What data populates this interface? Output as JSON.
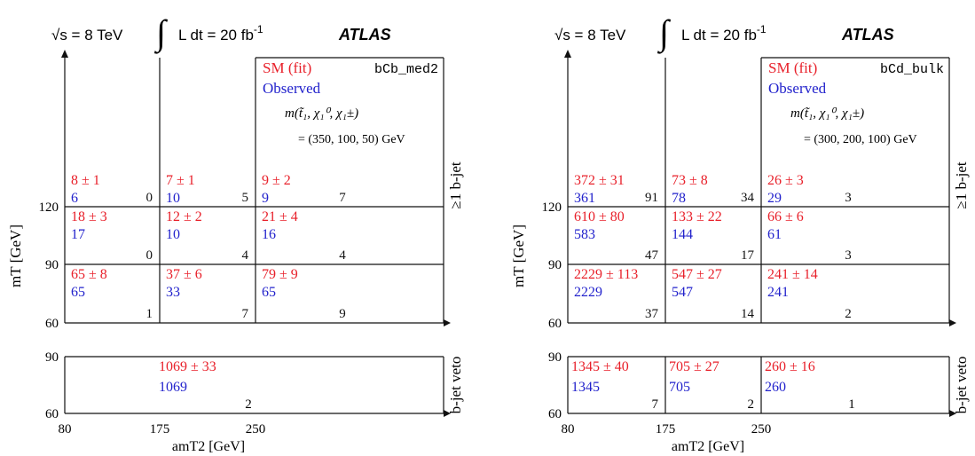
{
  "colors": {
    "fit": "#e8202a",
    "observed": "#2222cc",
    "ink": "#111111"
  },
  "header": {
    "energy_label": "√s = 8 TeV",
    "lumi_prefix": "L dt = 20 fb",
    "lumi_exp": "-1",
    "experiment": "ATLAS"
  },
  "legend": {
    "fit": "SM (fit)",
    "observed": "Observed"
  },
  "mass_label": "m(t̃₁, χ₁⁰, χ₁±)",
  "axes": {
    "y_label": "mT [GeV]",
    "x_label": "amT2 [GeV]",
    "x_ticks": [
      "80",
      "175",
      "250"
    ],
    "top_y_ticks": [
      "120",
      "90",
      "60"
    ],
    "bottom_y_ticks": [
      "90",
      "60"
    ],
    "right_label_top": "≥1 b-jet",
    "right_label_bottom": "b-jet veto"
  },
  "chart_data": [
    {
      "type": "table",
      "signal_region": "bCb_med2",
      "mass_point": "= (350, 100, 50) GeV",
      "x_bins": [
        [
          80,
          175
        ],
        [
          175,
          250
        ],
        [
          250,
          null
        ]
      ],
      "b_jet": {
        "mt_bins": [
          [
            120,
            null
          ],
          [
            90,
            120
          ],
          [
            60,
            90
          ]
        ],
        "cells": [
          [
            {
              "fit": "8 ± 1",
              "obs": "6",
              "sig": "0"
            },
            {
              "fit": "7 ± 1",
              "obs": "10",
              "sig": "5"
            },
            {
              "fit": "9 ± 2",
              "obs": "9",
              "sig": "7"
            }
          ],
          [
            {
              "fit": "18 ± 3",
              "obs": "17",
              "sig": "0"
            },
            {
              "fit": "12 ± 2",
              "obs": "10",
              "sig": "4"
            },
            {
              "fit": "21 ± 4",
              "obs": "16",
              "sig": "4"
            }
          ],
          [
            {
              "fit": "65 ± 8",
              "obs": "65",
              "sig": "1"
            },
            {
              "fit": "37 ± 6",
              "obs": "33",
              "sig": "7"
            },
            {
              "fit": "79 ± 9",
              "obs": "65",
              "sig": "9"
            }
          ]
        ]
      },
      "b_veto": {
        "mt_bins": [
          [
            60,
            90
          ]
        ],
        "merged": true,
        "cells": [
          {
            "fit": "1069 ± 33",
            "obs": "1069",
            "sig": "2"
          }
        ]
      }
    },
    {
      "type": "table",
      "signal_region": "bCd_bulk",
      "mass_point": "= (300, 200, 100) GeV",
      "x_bins": [
        [
          80,
          175
        ],
        [
          175,
          250
        ],
        [
          250,
          null
        ]
      ],
      "b_jet": {
        "mt_bins": [
          [
            120,
            null
          ],
          [
            90,
            120
          ],
          [
            60,
            90
          ]
        ],
        "cells": [
          [
            {
              "fit": "372 ± 31",
              "obs": "361",
              "sig": "91"
            },
            {
              "fit": "73 ± 8",
              "obs": "78",
              "sig": "34"
            },
            {
              "fit": "26 ± 3",
              "obs": "29",
              "sig": "3"
            }
          ],
          [
            {
              "fit": "610 ± 80",
              "obs": "583",
              "sig": "47"
            },
            {
              "fit": "133 ± 22",
              "obs": "144",
              "sig": "17"
            },
            {
              "fit": "66 ± 6",
              "obs": "61",
              "sig": "3"
            }
          ],
          [
            {
              "fit": "2229 ± 113",
              "obs": "2229",
              "sig": "37"
            },
            {
              "fit": "547 ± 27",
              "obs": "547",
              "sig": "14"
            },
            {
              "fit": "241 ± 14",
              "obs": "241",
              "sig": "2"
            }
          ]
        ]
      },
      "b_veto": {
        "mt_bins": [
          [
            60,
            90
          ]
        ],
        "merged": false,
        "cells": [
          {
            "fit": "1345 ± 40",
            "obs": "1345",
            "sig": "7"
          },
          {
            "fit": "705 ± 27",
            "obs": "705",
            "sig": "2"
          },
          {
            "fit": "260 ± 16",
            "obs": "260",
            "sig": "1"
          }
        ]
      }
    }
  ]
}
